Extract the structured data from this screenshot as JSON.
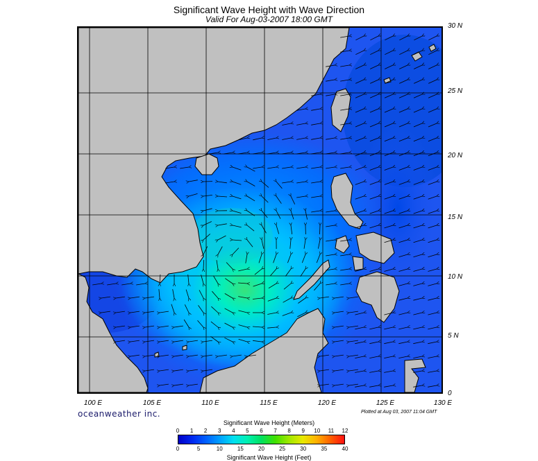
{
  "header": {
    "title": "Significant Wave Height with Wave Direction",
    "subtitle": "Valid For Aug-03-2007 18:00 GMT"
  },
  "map": {
    "lat_labels": [
      "30 N",
      "25 N",
      "20 N",
      "15 N",
      "10 N",
      "5 N",
      "0"
    ],
    "lon_labels": [
      "100 E",
      "105 E",
      "110 E",
      "115 E",
      "120 E",
      "125 E",
      "130 E"
    ],
    "extent": {
      "lon_min": 99,
      "lon_max": 130,
      "lat_min": 0,
      "lat_max": 30
    },
    "colors": {
      "land": "#c0c0c0",
      "ocean_base": "#1e55f0",
      "grid": "#000000",
      "arrow": "#000000"
    }
  },
  "credit": "oceanweather inc.",
  "plotted": "Plotted at Aug 03, 2007 11:04 GMT",
  "legend": {
    "meters_title": "Significant Wave Height (Meters)",
    "feet_title": "Significant Wave Height (Feet)",
    "meters_ticks": [
      "0",
      "1",
      "2",
      "3",
      "4",
      "5",
      "6",
      "7",
      "8",
      "9",
      "10",
      "11",
      "12"
    ],
    "feet_ticks": [
      "0",
      "5",
      "10",
      "15",
      "20",
      "25",
      "30",
      "35",
      "40"
    ],
    "colors": [
      "#0000c8",
      "#0028f0",
      "#0060ff",
      "#00a0ff",
      "#00e0f0",
      "#00f0b0",
      "#00e060",
      "#40e000",
      "#a0e800",
      "#e8e800",
      "#ffb000",
      "#ff6000",
      "#ff1010"
    ]
  }
}
